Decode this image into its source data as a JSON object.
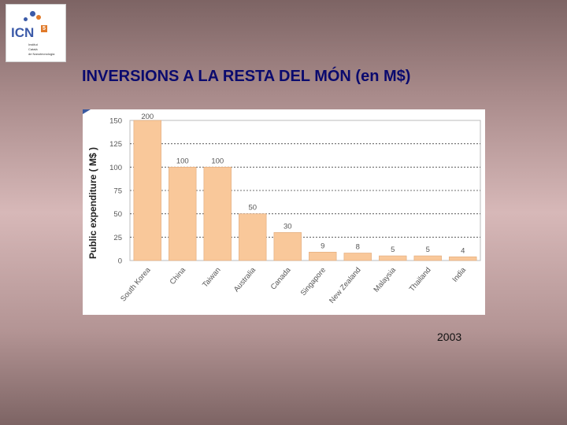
{
  "logo": {
    "text": "ICN",
    "superscript": "5",
    "lines": [
      "Institut",
      "Català",
      "de Nanotecnologia"
    ]
  },
  "title": "INVERSIONS A LA RESTA DEL MÓN (en M$)",
  "year_label": "2003",
  "colors": {
    "bar": "#f9c89a",
    "bar_stroke": "#e0a878",
    "axis_text": "#555555",
    "ylabel": "#222222",
    "title": "#0a0a6e",
    "corner_accent": "#3a5aa0"
  },
  "chart_data": {
    "type": "bar",
    "categories": [
      "South Korea",
      "China",
      "Taiwan",
      "Australia",
      "Canada",
      "Singapore",
      "New Zealand",
      "Malaysia",
      "Thailand",
      "India"
    ],
    "values": [
      200,
      100,
      100,
      50,
      30,
      9,
      8,
      5,
      5,
      4
    ],
    "value_labels": [
      "200",
      "100",
      "100",
      "50",
      "30",
      "9",
      "8",
      "5",
      "5",
      "4"
    ],
    "ylabel": "Public expenditure ( M$ )",
    "xlabel": "",
    "ylim": [
      0,
      150
    ],
    "yticks": [
      0,
      25,
      50,
      75,
      100,
      125,
      150
    ],
    "grid": "dashed horizontal",
    "note": "bar South Korea extends beyond axis maximum (clipped at 150)"
  }
}
